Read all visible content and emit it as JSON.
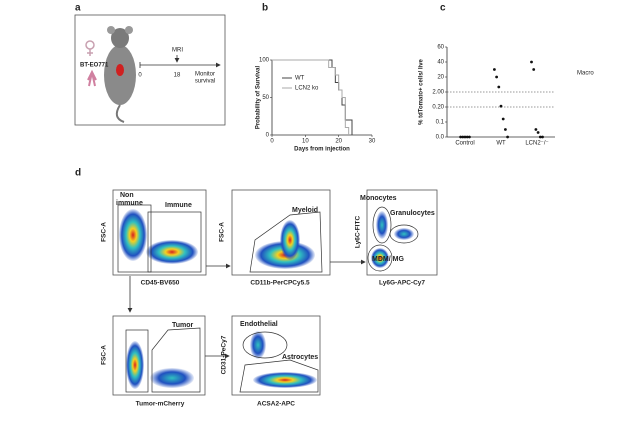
{
  "panel_labels": [
    "a",
    "b",
    "c",
    "d"
  ],
  "panel_a": {
    "cell_line": "BT-EO771",
    "event": "MRI",
    "timeline_ticks": [
      0,
      18
    ],
    "timeline_end": [
      "Monitor",
      "survival"
    ]
  },
  "survival": {
    "type": "line",
    "ylabel": "Probability of Survival",
    "xlabel": "Days from injection",
    "xlim": [
      0,
      30
    ],
    "ylim": [
      0,
      100
    ],
    "xticks": [
      0,
      10,
      20,
      30
    ],
    "yticks": [
      0,
      50,
      100
    ],
    "series": [
      {
        "name": "WT",
        "color": "#444444",
        "x": [
          0,
          18,
          19,
          20,
          21,
          22,
          24
        ],
        "values": [
          100,
          90,
          70,
          60,
          40,
          20,
          0
        ]
      },
      {
        "name": "LCN2 ko",
        "color": "#aaaaaa",
        "x": [
          0,
          17,
          19,
          20,
          21,
          22,
          23
        ],
        "values": [
          100,
          90,
          80,
          60,
          50,
          10,
          0
        ]
      }
    ]
  },
  "dotplot": {
    "type": "scatter",
    "ylabel": "% tdTomato+ cells/ live",
    "annotation": "Macro",
    "categories": [
      "Control",
      "WT",
      "LCN2⁻/⁻"
    ],
    "ylim": [
      0,
      60
    ],
    "yticks": [
      {
        "value": 0,
        "label": "0.0"
      },
      {
        "value": 0.1,
        "label": "0.1"
      },
      {
        "value": 0.2,
        "label": "0.20"
      },
      {
        "value": 2,
        "label": "2.00"
      },
      20,
      40,
      60
    ],
    "reference_lines": [
      0.2,
      2
    ],
    "values": [
      [
        0,
        0,
        0,
        0,
        0
      ],
      [
        30,
        20,
        8,
        0.3,
        0.12,
        0.05,
        0
      ],
      [
        40,
        30,
        0.05,
        0.03,
        0,
        0
      ]
    ]
  },
  "flow": {
    "p1": {
      "y": "FSC-A",
      "x": "CD45-BV650",
      "gate1": [
        "Non",
        "immune"
      ],
      "gate2": "Immune"
    },
    "p2": {
      "y": "FSC-A",
      "x": "CD11b-PerCPCy5.5",
      "gate": "Myeloid"
    },
    "p3": {
      "y": "Ly6C-FITC",
      "x": "Ly6G-APC-Cy7",
      "gate1": "Monocytes",
      "gate2": "Granulocytes",
      "gate3": "MDM/ MG"
    },
    "p4": {
      "y": "FSC-A",
      "x": "Tumor-mCherry",
      "gate": "Tumor"
    },
    "p5": {
      "y": "CD31-PeCy7",
      "x": "ACSA2-APC",
      "gate1": "Endothelial",
      "gate2": "Astrocytes"
    }
  }
}
